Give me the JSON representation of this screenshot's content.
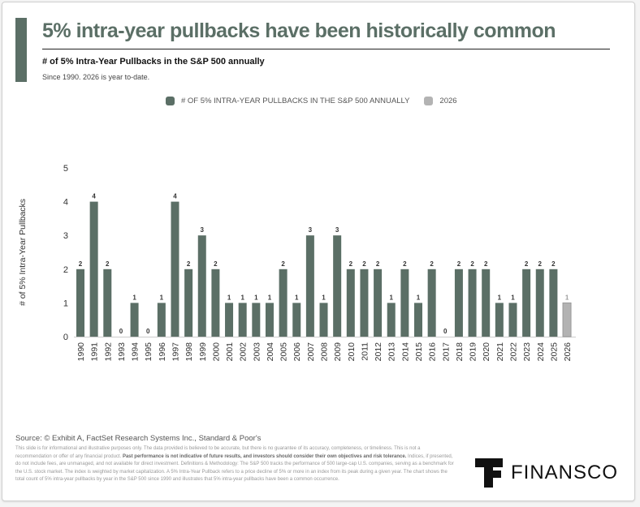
{
  "header": {
    "title": "5% intra-year pullbacks have been historically common",
    "subtitle": "# of 5% Intra-Year Pullbacks in the S&P 500 annually",
    "note": "Since 1990. 2026 is year to-date."
  },
  "chart_data": {
    "type": "bar",
    "title": "# of 5% Intra-Year Pullbacks in the S&P 500 annually",
    "xlabel": "",
    "ylabel": "# of 5% Intra-Year Pullbacks",
    "ylim": [
      0,
      5
    ],
    "yticks": [
      "0",
      "1",
      "2",
      "3",
      "4",
      "5"
    ],
    "grid": false,
    "legend_position": "top-center",
    "categories": [
      "1990",
      "1991",
      "1992",
      "1993",
      "1994",
      "1995",
      "1996",
      "1997",
      "1998",
      "1999",
      "2000",
      "2001",
      "2002",
      "2003",
      "2004",
      "2005",
      "2006",
      "2007",
      "2008",
      "2009",
      "2010",
      "2011",
      "2012",
      "2013",
      "2014",
      "2015",
      "2016",
      "2017",
      "2018",
      "2019",
      "2020",
      "2021",
      "2022",
      "2023",
      "2024",
      "2025",
      "2026"
    ],
    "values": [
      2,
      4,
      2,
      0,
      1,
      0,
      1,
      4,
      2,
      3,
      2,
      1,
      1,
      1,
      1,
      2,
      1,
      3,
      1,
      3,
      2,
      2,
      2,
      1,
      2,
      1,
      2,
      0,
      2,
      2,
      2,
      1,
      1,
      2,
      2,
      2,
      1
    ],
    "series": [
      {
        "name": "# OF 5% INTRA-YEAR PULLBACKS IN THE S&P 500 ANNUALLY",
        "color": "#5b6f66"
      },
      {
        "name": "2026",
        "color": "#b3b3b3"
      }
    ]
  },
  "footer": {
    "source": "Source: © Exhibit A, FactSet Research Systems Inc., Standard & Poor's",
    "disclaimer_1": "This slide is for informational and illustrative purposes only. The data provided is believed to be accurate, but there is no guarantee of its accuracy, completeness, or timeliness. This is not a recommendation or offer of any financial product. ",
    "disclaimer_bold": "Past performance is not indicative of future results, and investors should consider their own objectives and risk tolerance.",
    "disclaimer_2": " Indices, if presented, do not include fees, are unmanaged, and not available for direct investment. Definitions & Methodology: The S&P 500 tracks the performance of 500 large-cap U.S. companies, serving as a benchmark for the U.S. stock market. The index is weighted by market capitalization. A 5% Intra-Year Pullback refers to a price decline of 5% or more in an index from its peak during a given year. The chart shows the total count of 5% intra-year pullbacks by year in the S&P 500 since 1990 and illustrates that 5% intra-year pullbacks have been a common occurrence.",
    "logo": "FINANSCO"
  }
}
